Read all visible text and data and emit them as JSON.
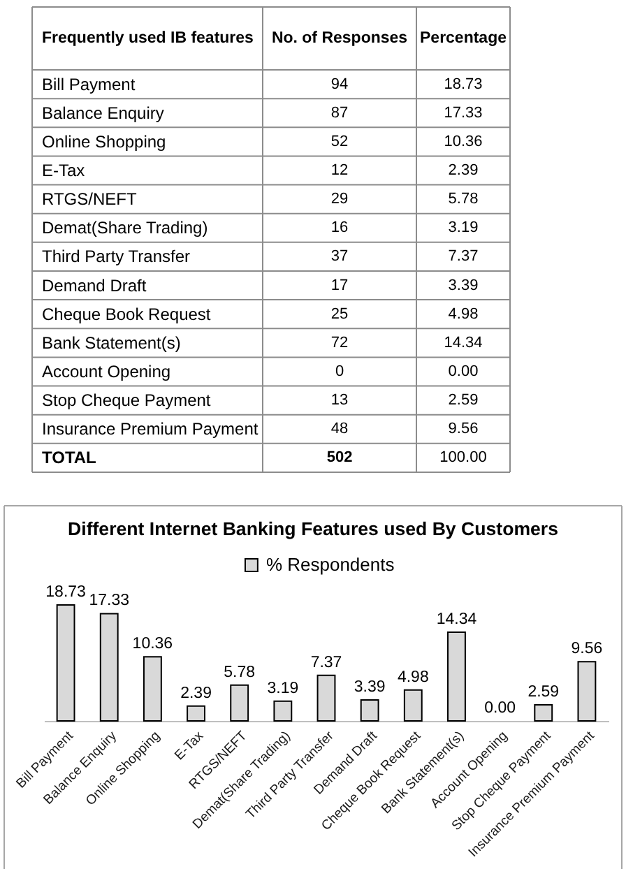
{
  "chart_data": [
    {
      "type": "other",
      "xlabel": "Frequently used IB features",
      "categories": [
        "Bill Payment",
        "Balance Enquiry",
        "Online Shopping",
        "E-Tax",
        "RTGS/NEFT",
        "Demat(Share Trading)",
        "Third Party Transfer",
        "Demand Draft",
        "Cheque Book Request",
        "Bank Statement(s)",
        "Account Opening",
        "Stop Cheque Payment",
        "Insurance Premium Payment",
        "TOTAL"
      ],
      "series": [
        {
          "name": "No. of Responses",
          "values": [
            94,
            87,
            52,
            12,
            29,
            16,
            37,
            17,
            25,
            72,
            0,
            13,
            48,
            502
          ],
          "value_labels": [
            "94",
            "87",
            "52",
            "12",
            "29",
            "16",
            "37",
            "17",
            "25",
            "72",
            "0",
            "13",
            "48",
            "502"
          ]
        },
        {
          "name": "Percentage",
          "values": [
            18.73,
            17.33,
            10.36,
            2.39,
            5.78,
            3.19,
            7.37,
            3.39,
            4.98,
            14.34,
            0,
            2.59,
            9.56,
            100
          ],
          "value_labels": [
            "18.73",
            "17.33",
            "10.36",
            "2.39",
            "5.78",
            "3.19",
            "7.37",
            "3.39",
            "4.98",
            "14.34",
            "0.00",
            "2.59",
            "9.56",
            "100.00"
          ]
        }
      ]
    },
    {
      "type": "bar",
      "title": "Different Internet Banking Features used By Customers",
      "categories": [
        "Bill Payment",
        "Balance Enquiry",
        "Online Shopping",
        "E-Tax",
        "RTGS/NEFT",
        "Demat(Share Trading)",
        "Third Party Transfer",
        "Demand Draft",
        "Cheque Book Request",
        "Bank Statement(s)",
        "Account Opening",
        "Stop Cheque Payment",
        "Insurance Premium Payment"
      ],
      "series": [
        {
          "name": "% Respondents",
          "color": "#d9d9d9",
          "values": [
            18.73,
            17.33,
            10.36,
            2.39,
            5.78,
            3.19,
            7.37,
            3.39,
            4.98,
            14.34,
            0,
            2.59,
            9.56
          ],
          "value_labels": [
            "18.73",
            "17.33",
            "10.36",
            "2.39",
            "5.78",
            "3.19",
            "7.37",
            "3.39",
            "4.98",
            "14.34",
            "0.00",
            "2.59",
            "9.56"
          ]
        }
      ],
      "legend": "top",
      "tick_labels": "x"
    }
  ]
}
